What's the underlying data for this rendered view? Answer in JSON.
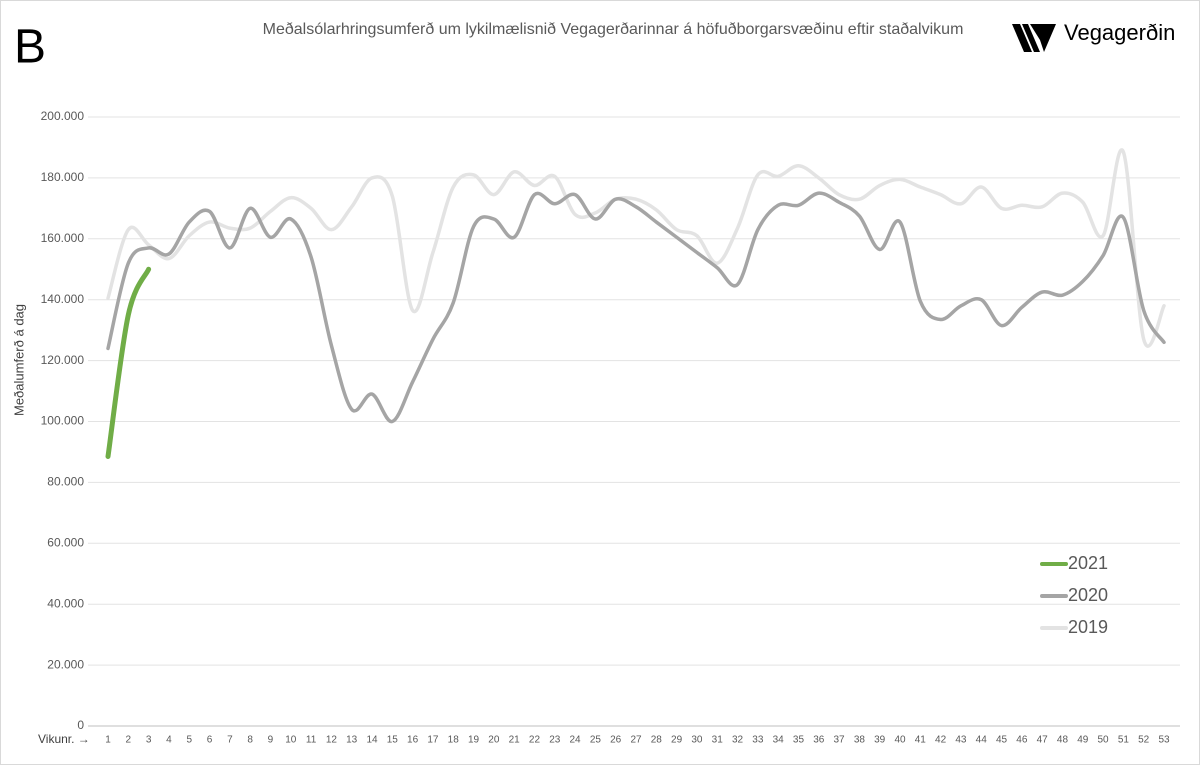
{
  "panel_label": "B",
  "logo_text": "Vegagerðin",
  "chart_data": {
    "type": "line",
    "title": "Meðalsólarhringsumferð  um lykilmælisnið Vegagerðarinnar  á höfuðborgarsvæðinu  eftir staðalvikum",
    "y_label": "Meðalumferð á dag",
    "x_label": "Vikunr. →",
    "categories": [
      "1",
      "2",
      "3",
      "4",
      "5",
      "6",
      "7",
      "8",
      "9",
      "10",
      "11",
      "12",
      "13",
      "14",
      "15",
      "16",
      "17",
      "18",
      "19",
      "20",
      "21",
      "22",
      "23",
      "24",
      "25",
      "26",
      "27",
      "28",
      "29",
      "30",
      "31",
      "32",
      "33",
      "34",
      "35",
      "36",
      "37",
      "38",
      "39",
      "40",
      "41",
      "42",
      "43",
      "44",
      "45",
      "46",
      "47",
      "48",
      "49",
      "50",
      "51",
      "52",
      "53"
    ],
    "series": [
      {
        "name": "2021",
        "color": "#70ad47",
        "values": [
          88500,
          135000,
          150000,
          null,
          null,
          null,
          null,
          null,
          null,
          null,
          null,
          null,
          null,
          null,
          null,
          null,
          null,
          null,
          null,
          null,
          null,
          null,
          null,
          null,
          null,
          null,
          null,
          null,
          null,
          null,
          null,
          null,
          null,
          null,
          null,
          null,
          null,
          null,
          null,
          null,
          null,
          null,
          null,
          null,
          null,
          null,
          null,
          null,
          null,
          null,
          null,
          null,
          null
        ]
      },
      {
        "name": "2020",
        "color": "#a5a5a5",
        "values": [
          124000,
          152000,
          157000,
          155000,
          165500,
          169000,
          157000,
          170000,
          160500,
          166500,
          154000,
          125000,
          104000,
          109000,
          100000,
          113000,
          127000,
          139000,
          164000,
          166500,
          160500,
          174500,
          171500,
          174500,
          166500,
          173000,
          170500,
          165500,
          160500,
          155500,
          150500,
          145000,
          163000,
          171000,
          171000,
          175000,
          172000,
          167500,
          156500,
          165500,
          139500,
          133500,
          138000,
          140000,
          131500,
          137500,
          142500,
          141500,
          146000,
          154500,
          167000,
          136500,
          126000
        ]
      },
      {
        "name": "2019",
        "color": "#e3e3e3",
        "values": [
          140500,
          163000,
          158000,
          153500,
          161000,
          165500,
          163500,
          163500,
          169000,
          173500,
          170000,
          163000,
          170500,
          180000,
          174000,
          136500,
          155500,
          177000,
          181000,
          174500,
          182000,
          177500,
          180500,
          168000,
          168500,
          173000,
          173000,
          169500,
          163000,
          161000,
          152000,
          163500,
          181000,
          180500,
          184000,
          180000,
          174500,
          173000,
          177500,
          179500,
          177000,
          174500,
          171500,
          177000,
          170000,
          171000,
          170500,
          175000,
          172000,
          161000,
          188500,
          127000,
          138000
        ]
      }
    ],
    "ylim": [
      0,
      200000
    ],
    "yticks": [
      0,
      {
        "value": 20000,
        "label": "20.000"
      },
      {
        "value": 40000,
        "label": "40.000"
      },
      {
        "value": 60000,
        "label": "60.000"
      },
      {
        "value": 80000,
        "label": "80.000"
      },
      {
        "value": 100000,
        "label": "100.000"
      },
      {
        "value": 120000,
        "label": "120.000"
      },
      {
        "value": 140000,
        "label": "140.000"
      },
      {
        "value": 160000,
        "label": "160.000"
      },
      {
        "value": 180000,
        "label": "180.000"
      },
      {
        "value": 200000,
        "label": "200.000"
      }
    ],
    "grid": true,
    "legend": "lower right"
  }
}
